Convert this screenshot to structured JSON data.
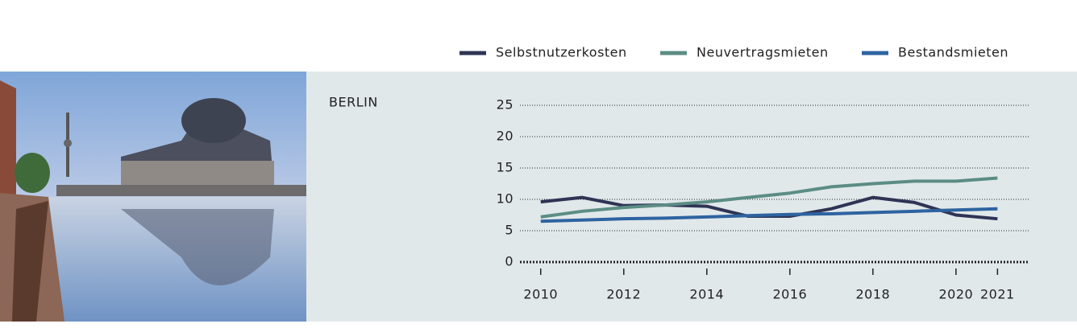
{
  "chart_data": {
    "type": "line",
    "title": "BERLIN",
    "x": [
      2010,
      2011,
      2012,
      2013,
      2014,
      2015,
      2016,
      2017,
      2018,
      2019,
      2020,
      2021
    ],
    "series": [
      {
        "name": "Selbstnutzerkosten",
        "color": "#2f3455",
        "values": [
          9.6,
          10.3,
          9.0,
          9.1,
          8.9,
          7.3,
          7.3,
          8.5,
          10.3,
          9.5,
          7.5,
          6.9
        ]
      },
      {
        "name": "Neuvertragsmieten",
        "color": "#5b8d85",
        "values": [
          7.2,
          8.1,
          8.7,
          9.1,
          9.6,
          10.3,
          11.0,
          12.0,
          12.5,
          12.9,
          12.9,
          13.4
        ]
      },
      {
        "name": "Bestandsmieten",
        "color": "#2e63a0",
        "values": [
          6.5,
          6.7,
          6.9,
          7.0,
          7.2,
          7.4,
          7.6,
          7.7,
          7.9,
          8.1,
          8.3,
          8.5
        ]
      }
    ],
    "xlim": [
      2009.5,
      2021.75
    ],
    "xticks": [
      2010,
      2012,
      2014,
      2016,
      2018,
      2020,
      2021
    ],
    "ylim": [
      0,
      25
    ],
    "yticks": [
      0,
      5,
      10,
      15,
      20,
      25
    ],
    "grid": true,
    "legend": "top"
  }
}
